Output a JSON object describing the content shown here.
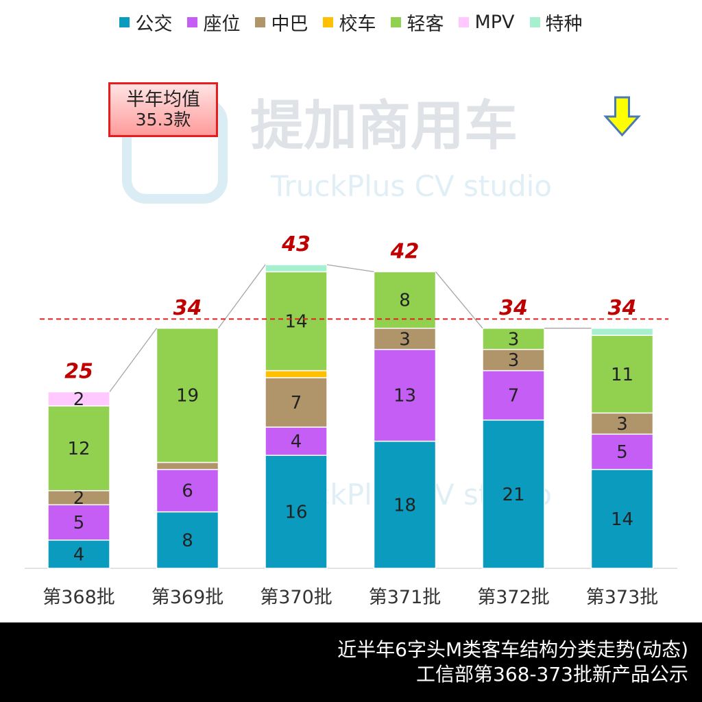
{
  "chart_data": {
    "type": "bar",
    "stacked": true,
    "categories": [
      "第368批",
      "第369批",
      "第370批",
      "第371批",
      "第372批",
      "第373批"
    ],
    "series": [
      {
        "name": "公交",
        "color": "#0a9bbf",
        "values": [
          4,
          8,
          16,
          18,
          21,
          14
        ]
      },
      {
        "name": "座位",
        "color": "#c45ef5",
        "values": [
          5,
          6,
          4,
          13,
          7,
          5
        ]
      },
      {
        "name": "中巴",
        "color": "#b0956a",
        "values": [
          2,
          1,
          7,
          3,
          3,
          3
        ]
      },
      {
        "name": "校车",
        "color": "#ffc000",
        "values": [
          0,
          0,
          1,
          0,
          0,
          0
        ]
      },
      {
        "name": "轻客",
        "color": "#92d050",
        "values": [
          12,
          19,
          14,
          8,
          3,
          11
        ]
      },
      {
        "name": "MPV",
        "color": "#ffc9ff",
        "values": [
          2,
          0,
          0,
          0,
          0,
          0
        ]
      },
      {
        "name": "特种",
        "color": "#a6f0cf",
        "values": [
          0,
          0,
          1,
          0,
          0,
          1
        ]
      }
    ],
    "segment_labels": [
      [
        "4",
        "8",
        "16",
        "18",
        "21",
        "14"
      ],
      [
        "5",
        "6",
        "4",
        "13",
        "7",
        "5"
      ],
      [
        "2",
        "",
        "7",
        "3",
        "3",
        "3"
      ],
      [
        "",
        "",
        "",
        "",
        "",
        ""
      ],
      [
        "12",
        "19",
        "14",
        "8",
        "3",
        "11"
      ],
      [
        "2",
        "",
        "",
        "",
        "",
        ""
      ],
      [
        "",
        "",
        "",
        "",
        "",
        ""
      ]
    ],
    "totals": [
      25,
      34,
      43,
      42,
      34,
      34
    ],
    "average": 35.3,
    "ylim": [
      0,
      43
    ],
    "legend_position": "top"
  },
  "average_box": {
    "line1": "半年均值",
    "line2": "35.3款"
  },
  "watermark": {
    "brand": "提加商用车",
    "sub": "TruckPlus CV studio"
  },
  "footer": {
    "line1": "近半年6字头M类客车结构分类走势(动态)",
    "line2": "工信部第368-373批新产品公示"
  },
  "colors": {
    "total_label": "#c00000",
    "average_line": "#e41e1e",
    "arrow": "#ffff00"
  }
}
